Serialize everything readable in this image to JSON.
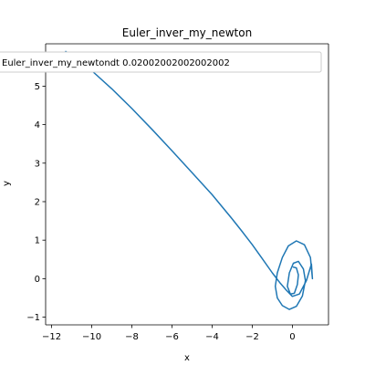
{
  "chart_data": {
    "type": "line",
    "title": "Euler_inver_my_newton",
    "xlabel": "x",
    "ylabel": "y",
    "xlim": [
      -12.3,
      1.8
    ],
    "ylim": [
      -1.2,
      6.1
    ],
    "xticks": [
      -12,
      -10,
      -8,
      -6,
      -4,
      -2,
      0
    ],
    "yticks": [
      -1,
      0,
      1,
      2,
      3,
      4,
      5
    ],
    "grid": false,
    "legend_position": "top",
    "series": [
      {
        "name": "Euler_inver_my_newtondt 0.02002002002002002",
        "color": "#1f77b4",
        "x": [
          -11.3,
          -10.0,
          -9.0,
          -8.0,
          -7.0,
          -6.0,
          -5.0,
          -4.0,
          -3.0,
          -2.5,
          -2.0,
          -1.5,
          -1.0,
          -0.6,
          -0.3,
          0.0,
          0.35,
          0.7,
          0.95,
          1.0,
          0.9,
          0.6,
          0.2,
          -0.2,
          -0.5,
          -0.75,
          -0.85,
          -0.75,
          -0.5,
          -0.15,
          0.2,
          0.5,
          0.65,
          0.55,
          0.3,
          0.05,
          -0.15,
          -0.25,
          -0.1,
          0.1,
          0.25,
          0.3,
          0.2,
          0.05
        ],
        "y": [
          5.9,
          5.4,
          4.93,
          4.42,
          3.88,
          3.32,
          2.75,
          2.18,
          1.55,
          1.22,
          0.88,
          0.52,
          0.15,
          -0.12,
          -0.3,
          -0.46,
          -0.4,
          -0.05,
          0.38,
          0.0,
          0.55,
          0.88,
          0.98,
          0.85,
          0.55,
          0.15,
          -0.2,
          -0.5,
          -0.7,
          -0.8,
          -0.72,
          -0.45,
          -0.05,
          0.25,
          0.45,
          0.4,
          0.15,
          -0.2,
          -0.4,
          -0.38,
          -0.15,
          0.1,
          0.28,
          0.3
        ]
      }
    ]
  }
}
